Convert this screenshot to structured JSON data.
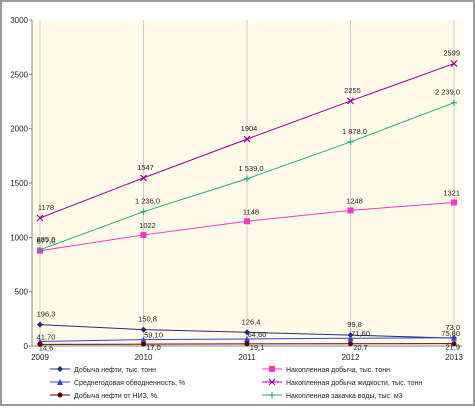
{
  "chart_data": {
    "type": "line",
    "title": "",
    "xlabel": "",
    "ylabel": "",
    "ylim": [
      0,
      3000
    ],
    "yticks": [
      "0",
      "500",
      "1000",
      "1500",
      "2000",
      "2500",
      "3000"
    ],
    "x": [
      "2009",
      "2010",
      "2011",
      "2012",
      "2013"
    ],
    "grid": "vertical",
    "legend_position": "bottom",
    "series": [
      {
        "name": "Добыча нефти, тыс. тонн",
        "color": "#1f2a80",
        "marker": "diamond",
        "values": [
          196.3,
          150.8,
          126.4,
          99.8,
          73.0
        ],
        "labels": [
          "196,3",
          "150,8",
          "126,4",
          "99,8",
          "73,0"
        ]
      },
      {
        "name": "Накопленная добыча, тыс. тонн",
        "color": "#ff33cc",
        "marker": "square",
        "values": [
          877,
          1022,
          1148,
          1248,
          1321
        ],
        "labels": [
          "877,0",
          "1022",
          "1148",
          "1248",
          "1321"
        ]
      },
      {
        "name": "Среднегодовая обводненность, %",
        "color": "#3344cc",
        "marker": "triangle",
        "values": [
          41.7,
          59.1,
          64.6,
          71.6,
          75.8
        ],
        "labels": [
          "41,70",
          "59,10",
          "64,60",
          "71,60",
          "75,80"
        ]
      },
      {
        "name": "Накопленная добыча жидкости, тыс. тонн",
        "color": "#990099",
        "marker": "x",
        "values": [
          1178,
          1547,
          1904,
          2255,
          2599
        ],
        "labels": [
          "1178",
          "1547",
          "1904",
          "2255",
          "2599"
        ]
      },
      {
        "name": "Добыча нефти от НИЗ, %.",
        "color": "#660000",
        "marker": "circle",
        "values": [
          14.6,
          17.0,
          19.1,
          20.7,
          21.9
        ],
        "labels": [
          "14,6",
          "17,0",
          "19,1",
          "20,7",
          "21,9"
        ]
      },
      {
        "name": "Накопленная закачка воды, тыс. м3",
        "color": "#22aa88",
        "marker": "plus",
        "values": [
          885,
          1236,
          1539,
          1878,
          2239
        ],
        "labels": [
          "885,0",
          "1 236,0",
          "1 539,0",
          "1 878,0",
          "2 239,0"
        ]
      }
    ]
  }
}
